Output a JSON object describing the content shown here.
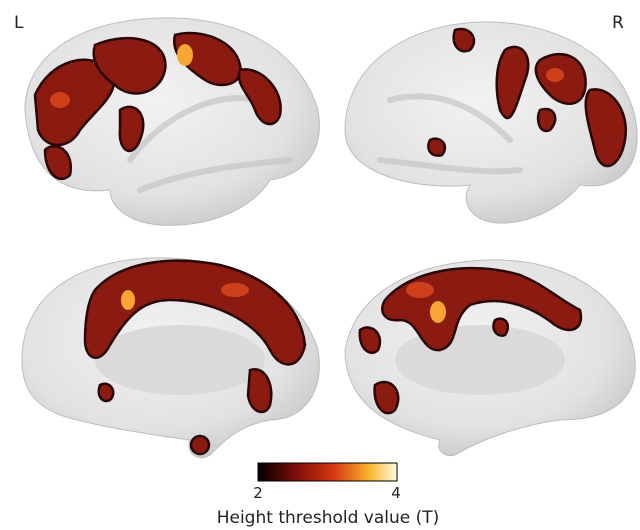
{
  "labels": {
    "left": "L",
    "right": "R"
  },
  "colorbar": {
    "min": 2,
    "max": 4,
    "label": "Height threshold value (T)"
  }
}
